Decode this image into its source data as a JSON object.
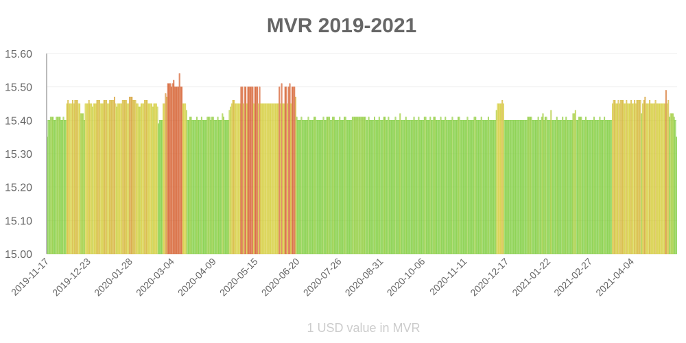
{
  "chart_data": {
    "type": "bar",
    "title": "MVR 2019-2021",
    "xlabel": "1 USD value in MVR",
    "ylabel": "",
    "ylim": [
      15.0,
      15.6
    ],
    "y_ticks": [
      "15.00",
      "15.10",
      "15.20",
      "15.30",
      "15.40",
      "15.50",
      "15.60"
    ],
    "x_ticks": [
      "2019-11-17",
      "2019-12-23",
      "2020-01-28",
      "2020-03-04",
      "2020-04-09",
      "2020-05-15",
      "2020-06-20",
      "2020-07-26",
      "2020-08-31",
      "2020-10-06",
      "2020-11-11",
      "2020-12-17",
      "2021-01-22",
      "2021-02-27",
      "2021-04-04"
    ],
    "x_first_date": "2019-11-17",
    "x_interval_days": 1,
    "grid": true,
    "legend": "none",
    "colors": {
      "low": "#7ccc3a",
      "mid": "#d4cc36",
      "high": "#d45a28"
    },
    "value_runs": [
      [
        15.35,
        1
      ],
      [
        15.4,
        2
      ],
      [
        15.41,
        3
      ],
      [
        15.4,
        2
      ],
      [
        15.41,
        4
      ],
      [
        15.4,
        2
      ],
      [
        15.41,
        1
      ],
      [
        15.4,
        2
      ],
      [
        15.45,
        1
      ],
      [
        15.46,
        1
      ],
      [
        15.45,
        3
      ],
      [
        15.46,
        1
      ],
      [
        15.45,
        1
      ],
      [
        15.46,
        3
      ],
      [
        15.45,
        2
      ],
      [
        15.42,
        3
      ],
      [
        15.4,
        1
      ],
      [
        15.45,
        3
      ],
      [
        15.46,
        1
      ],
      [
        15.45,
        2
      ],
      [
        15.44,
        1
      ],
      [
        15.45,
        3
      ],
      [
        15.46,
        3
      ],
      [
        15.45,
        3
      ],
      [
        15.46,
        3
      ],
      [
        15.45,
        2
      ],
      [
        15.46,
        4
      ],
      [
        15.47,
        1
      ],
      [
        15.45,
        1
      ],
      [
        15.44,
        1
      ],
      [
        15.45,
        4
      ],
      [
        15.46,
        4
      ],
      [
        15.45,
        2
      ],
      [
        15.47,
        3
      ],
      [
        15.46,
        3
      ],
      [
        15.45,
        2
      ],
      [
        15.44,
        2
      ],
      [
        15.45,
        3
      ],
      [
        15.46,
        3
      ],
      [
        15.45,
        4
      ],
      [
        15.44,
        1
      ],
      [
        15.45,
        3
      ],
      [
        15.44,
        1
      ],
      [
        15.39,
        1
      ],
      [
        15.4,
        3
      ],
      [
        15.45,
        2
      ],
      [
        15.48,
        1
      ],
      [
        15.47,
        1
      ],
      [
        15.51,
        3
      ],
      [
        15.5,
        1
      ],
      [
        15.51,
        1
      ],
      [
        15.52,
        1
      ],
      [
        15.5,
        4
      ],
      [
        15.54,
        1
      ],
      [
        15.5,
        2
      ],
      [
        15.45,
        3
      ],
      [
        15.43,
        1
      ],
      [
        15.4,
        2
      ],
      [
        15.41,
        2
      ],
      [
        15.4,
        4
      ],
      [
        15.41,
        1
      ],
      [
        15.4,
        3
      ],
      [
        15.41,
        1
      ],
      [
        15.4,
        4
      ],
      [
        15.41,
        3
      ],
      [
        15.4,
        1
      ],
      [
        15.41,
        2
      ],
      [
        15.4,
        3
      ],
      [
        15.41,
        1
      ],
      [
        15.4,
        3
      ],
      [
        15.42,
        1
      ],
      [
        15.41,
        1
      ],
      [
        15.4,
        4
      ],
      [
        15.43,
        1
      ],
      [
        15.44,
        1
      ],
      [
        15.45,
        1
      ],
      [
        15.46,
        2
      ],
      [
        15.45,
        5
      ],
      [
        15.5,
        2
      ],
      [
        15.45,
        1
      ],
      [
        15.5,
        2
      ],
      [
        15.45,
        1
      ],
      [
        15.5,
        5
      ],
      [
        15.45,
        1
      ],
      [
        15.5,
        3
      ],
      [
        15.45,
        1
      ],
      [
        15.5,
        1
      ],
      [
        15.45,
        13
      ],
      [
        15.45,
        3
      ],
      [
        15.5,
        1
      ],
      [
        15.45,
        1
      ],
      [
        15.51,
        1
      ],
      [
        15.45,
        2
      ],
      [
        15.5,
        2
      ],
      [
        15.45,
        1
      ],
      [
        15.5,
        1
      ],
      [
        15.51,
        1
      ],
      [
        15.45,
        1
      ],
      [
        15.5,
        3
      ],
      [
        15.47,
        1
      ],
      [
        15.41,
        1
      ],
      [
        15.4,
        3
      ],
      [
        15.41,
        1
      ],
      [
        15.4,
        5
      ],
      [
        15.41,
        1
      ],
      [
        15.4,
        4
      ],
      [
        15.41,
        2
      ],
      [
        15.4,
        6
      ],
      [
        15.41,
        1
      ],
      [
        15.4,
        2
      ],
      [
        15.41,
        3
      ],
      [
        15.4,
        2
      ],
      [
        15.41,
        2
      ],
      [
        15.4,
        4
      ],
      [
        15.41,
        1
      ],
      [
        15.4,
        3
      ],
      [
        15.41,
        2
      ],
      [
        15.4,
        5
      ],
      [
        15.41,
        12
      ],
      [
        15.4,
        2
      ],
      [
        15.41,
        1
      ],
      [
        15.4,
        4
      ],
      [
        15.41,
        1
      ],
      [
        15.4,
        3
      ],
      [
        15.41,
        1
      ],
      [
        15.4,
        3
      ],
      [
        15.41,
        2
      ],
      [
        15.4,
        2
      ],
      [
        15.41,
        1
      ],
      [
        15.4,
        5
      ],
      [
        15.41,
        1
      ],
      [
        15.4,
        3
      ],
      [
        15.42,
        1
      ],
      [
        15.4,
        4
      ],
      [
        15.41,
        1
      ],
      [
        15.4,
        6
      ],
      [
        15.41,
        1
      ],
      [
        15.4,
        3
      ],
      [
        15.41,
        1
      ],
      [
        15.4,
        4
      ],
      [
        15.41,
        2
      ],
      [
        15.4,
        3
      ],
      [
        15.41,
        1
      ],
      [
        15.4,
        2
      ],
      [
        15.41,
        2
      ],
      [
        15.4,
        4
      ],
      [
        15.41,
        1
      ],
      [
        15.4,
        3
      ],
      [
        15.41,
        1
      ],
      [
        15.4,
        5
      ],
      [
        15.41,
        1
      ],
      [
        15.4,
        4
      ],
      [
        15.41,
        2
      ],
      [
        15.4,
        6
      ],
      [
        15.41,
        1
      ],
      [
        15.4,
        5
      ],
      [
        15.41,
        2
      ],
      [
        15.4,
        4
      ],
      [
        15.41,
        1
      ],
      [
        15.4,
        5
      ],
      [
        15.41,
        1
      ],
      [
        15.4,
        6
      ],
      [
        15.43,
        1
      ],
      [
        15.45,
        3
      ],
      [
        15.45,
        1
      ],
      [
        15.46,
        1
      ],
      [
        15.45,
        1
      ],
      [
        15.4,
        20
      ],
      [
        15.41,
        4
      ],
      [
        15.4,
        5
      ],
      [
        15.41,
        1
      ],
      [
        15.4,
        2
      ],
      [
        15.41,
        1
      ],
      [
        15.42,
        1
      ],
      [
        15.4,
        1
      ],
      [
        15.41,
        2
      ],
      [
        15.4,
        3
      ],
      [
        15.43,
        1
      ],
      [
        15.4,
        4
      ],
      [
        15.41,
        1
      ],
      [
        15.4,
        4
      ],
      [
        15.41,
        1
      ],
      [
        15.4,
        2
      ],
      [
        15.41,
        1
      ],
      [
        15.4,
        5
      ],
      [
        15.42,
        2
      ],
      [
        15.43,
        1
      ],
      [
        15.4,
        2
      ],
      [
        15.41,
        3
      ],
      [
        15.4,
        3
      ],
      [
        15.41,
        1
      ],
      [
        15.4,
        6
      ],
      [
        15.41,
        1
      ],
      [
        15.4,
        4
      ],
      [
        15.41,
        1
      ],
      [
        15.4,
        3
      ],
      [
        15.41,
        1
      ],
      [
        15.4,
        6
      ],
      [
        15.45,
        1
      ],
      [
        15.46,
        2
      ],
      [
        15.45,
        2
      ],
      [
        15.46,
        1
      ],
      [
        15.45,
        1
      ],
      [
        15.46,
        3
      ],
      [
        15.45,
        2
      ],
      [
        15.46,
        1
      ],
      [
        15.45,
        3
      ],
      [
        15.46,
        1
      ],
      [
        15.45,
        2
      ],
      [
        15.46,
        1
      ],
      [
        15.45,
        1
      ],
      [
        15.46,
        4
      ],
      [
        15.42,
        1
      ],
      [
        15.45,
        1
      ],
      [
        15.46,
        1
      ],
      [
        15.47,
        1
      ],
      [
        15.45,
        3
      ],
      [
        15.46,
        1
      ],
      [
        15.45,
        4
      ],
      [
        15.46,
        1
      ],
      [
        15.45,
        2
      ],
      [
        15.45,
        6
      ],
      [
        15.49,
        1
      ],
      [
        15.45,
        1
      ],
      [
        15.46,
        1
      ],
      [
        15.41,
        1
      ],
      [
        15.42,
        3
      ],
      [
        15.41,
        1
      ],
      [
        15.4,
        1
      ],
      [
        15.35,
        1
      ]
    ]
  }
}
